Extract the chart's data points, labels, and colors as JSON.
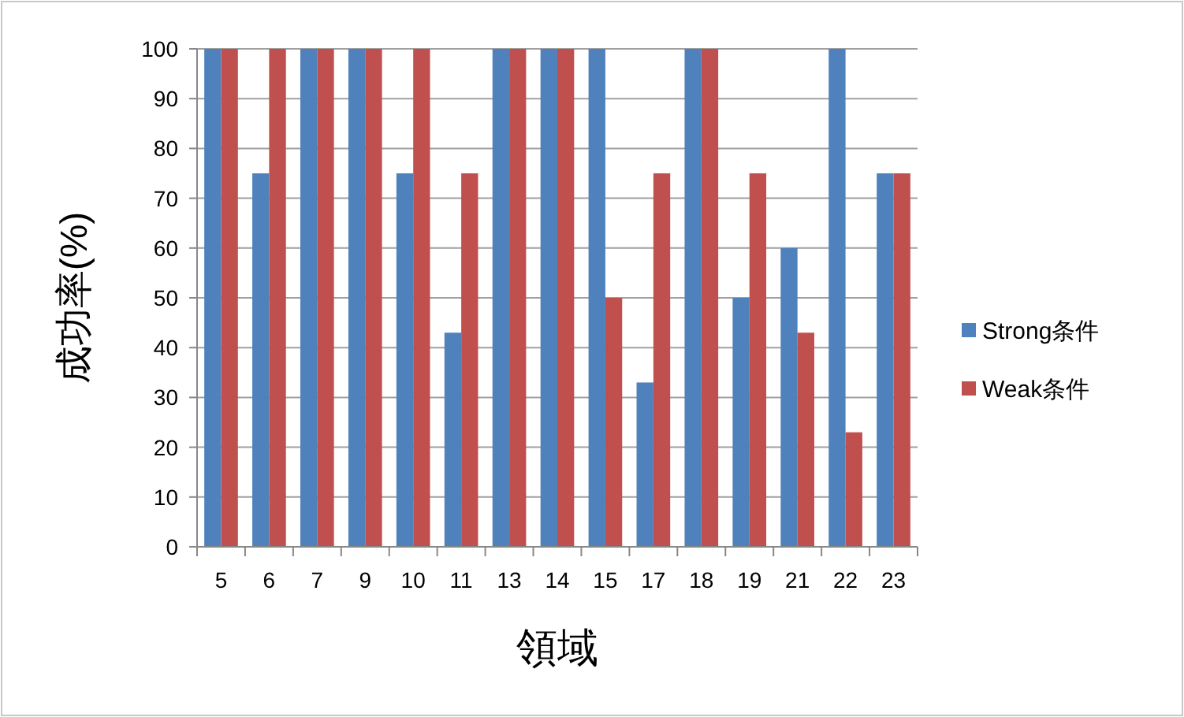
{
  "chart_data": {
    "type": "bar",
    "xlabel": "領域",
    "ylabel": "成功率(%)",
    "categories": [
      "5",
      "6",
      "7",
      "9",
      "10",
      "11",
      "13",
      "14",
      "15",
      "17",
      "18",
      "19",
      "21",
      "22",
      "23"
    ],
    "series": [
      {
        "name": "Strong条件",
        "color": "#4f81bd",
        "values": [
          100,
          75,
          100,
          100,
          75,
          43,
          100,
          100,
          100,
          33,
          100,
          50,
          60,
          100,
          75
        ]
      },
      {
        "name": "Weak条件",
        "color": "#c0504d",
        "values": [
          100,
          100,
          100,
          100,
          100,
          75,
          100,
          100,
          50,
          75,
          100,
          75,
          43,
          23,
          75
        ]
      }
    ],
    "ylim": [
      0,
      100
    ],
    "yticks": [
      0,
      10,
      20,
      30,
      40,
      50,
      60,
      70,
      80,
      90,
      100
    ],
    "grid": "y",
    "legend": "right"
  }
}
